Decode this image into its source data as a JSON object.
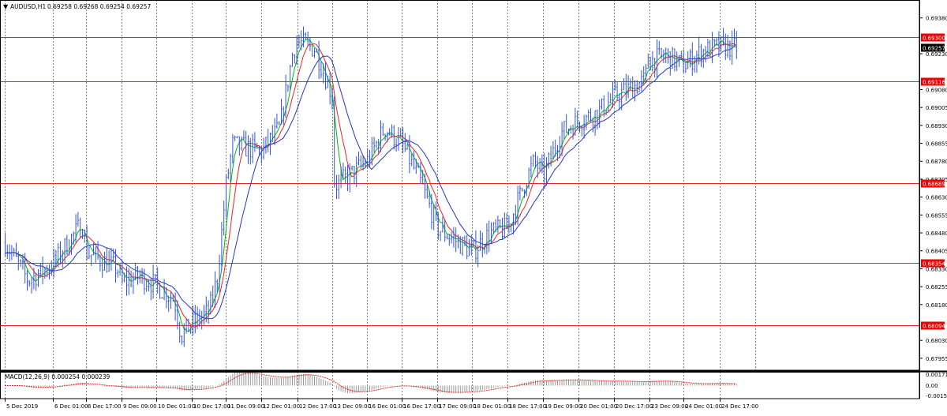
{
  "title_bar": {
    "menu_icon": "triangle-down-icon",
    "symbol": "AUDUSD,H1",
    "ohlc": "0.69258 0.69268 0.69254 0.69257"
  },
  "macd_panel": {
    "label": "MACD(12,26,9) 0.000254 0.000239",
    "ticks": [
      "0.001711",
      "0.00",
      "-0.001591"
    ],
    "ylim": [
      -0.0017,
      0.0018
    ]
  },
  "colors": {
    "candles": "#3355dd",
    "ma_fast": "#00bb00",
    "ma_mid": "#ee2222",
    "ma_slow": "#2233cc",
    "level_line": "#ee2222",
    "tag_bg": "#ee0000",
    "current_bg": "#000000",
    "grid": "#000000"
  },
  "chart_data": {
    "type": "candlestick",
    "ylim": [
      0.79555,
      0.69755
    ],
    "y_ticks": [
      "0.69380",
      "0.69230",
      "0.69080",
      "0.69005",
      "0.68930",
      "0.68855",
      "0.68780",
      "0.68705",
      "0.68630",
      "0.68555",
      "0.68480",
      "0.68405",
      "0.68330",
      "0.68255",
      "0.68180",
      "0.68030",
      "0.67955"
    ],
    "x_labels": [
      "5 Dec 2019",
      "6 Dec 01:00",
      "6 Dec 17:00",
      "9 Dec 09:00",
      "10 Dec 01:00",
      "10 Dec 17:00",
      "11 Dec 09:00",
      "12 Dec 01:00",
      "12 Dec 17:00",
      "13 Dec 09:00",
      "16 Dec 01:00",
      "16 Dec 17:00",
      "17 Dec 09:00",
      "18 Dec 01:00",
      "18 Dec 17:00",
      "19 Dec 09:00",
      "20 Dec 01:00",
      "20 Dec 17:00",
      "23 Dec 09:00",
      "24 Dec 01:00",
      "24 Dec 17:00"
    ],
    "levels": [
      "0.69300",
      "0.69116",
      "0.68689",
      "0.68354",
      "0.68094"
    ],
    "current_price": "0.69257",
    "close_path": [
      [
        "5 Dec 2019",
        0.6844
      ],
      [
        "5 Dec 2019 12:00",
        0.6828
      ],
      [
        "6 Dec 01:00",
        0.6835
      ],
      [
        "6 Dec 09:00",
        0.6845
      ],
      [
        "6 Dec 15:00",
        0.6852
      ],
      [
        "6 Dec 17:00",
        0.684
      ],
      [
        "9 Dec 01:00",
        0.6833
      ],
      [
        "9 Dec 09:00",
        0.6827
      ],
      [
        "9 Dec 17:00",
        0.683
      ],
      [
        "10 Dec 01:00",
        0.6826
      ],
      [
        "10 Dec 09:00",
        0.682
      ],
      [
        "10 Dec 12:00",
        0.6805
      ],
      [
        "10 Dec 17:00",
        0.681
      ],
      [
        "11 Dec 01:00",
        0.6815
      ],
      [
        "11 Dec 05:00",
        0.683
      ],
      [
        "11 Dec 09:00",
        0.6868
      ],
      [
        "11 Dec 12:00",
        0.6885
      ],
      [
        "12 Dec 01:00",
        0.6882
      ],
      [
        "12 Dec 09:00",
        0.6892
      ],
      [
        "12 Dec 15:00",
        0.6925
      ],
      [
        "12 Dec 17:00",
        0.6928
      ],
      [
        "13 Dec 01:00",
        0.6925
      ],
      [
        "13 Dec 09:00",
        0.6905
      ],
      [
        "13 Dec 12:00",
        0.687
      ],
      [
        "13 Dec 17:00",
        0.6868
      ],
      [
        "16 Dec 01:00",
        0.6878
      ],
      [
        "16 Dec 09:00",
        0.6892
      ],
      [
        "16 Dec 17:00",
        0.6885
      ],
      [
        "17 Dec 01:00",
        0.687
      ],
      [
        "17 Dec 09:00",
        0.685
      ],
      [
        "17 Dec 17:00",
        0.6845
      ],
      [
        "18 Dec 01:00",
        0.684
      ],
      [
        "18 Dec 09:00",
        0.6848
      ],
      [
        "18 Dec 17:00",
        0.685
      ],
      [
        "19 Dec 01:00",
        0.687
      ],
      [
        "19 Dec 05:00",
        0.6878
      ],
      [
        "19 Dec 09:00",
        0.6872
      ],
      [
        "19 Dec 17:00",
        0.689
      ],
      [
        "20 Dec 01:00",
        0.6895
      ],
      [
        "20 Dec 09:00",
        0.6898
      ],
      [
        "20 Dec 17:00",
        0.6905
      ],
      [
        "23 Dec 01:00",
        0.6912
      ],
      [
        "23 Dec 07:00",
        0.6925
      ],
      [
        "23 Dec 09:00",
        0.692
      ],
      [
        "23 Dec 17:00",
        0.6922
      ],
      [
        "24 Dec 01:00",
        0.6918
      ],
      [
        "24 Dec 09:00",
        0.6924
      ],
      [
        "24 Dec 17:00",
        0.6926
      ],
      [
        "25 Dec 01:00",
        0.69257
      ]
    ]
  }
}
